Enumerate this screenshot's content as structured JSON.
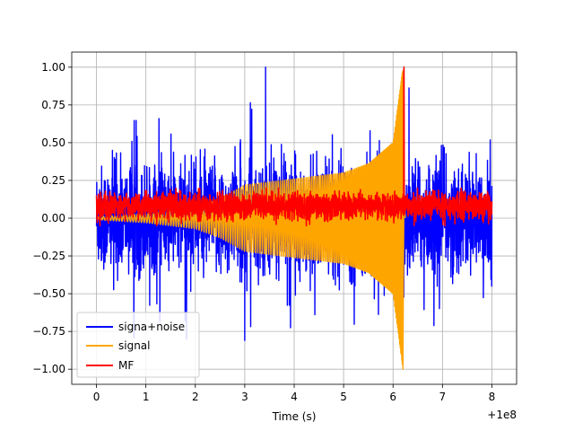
{
  "chart_data": {
    "type": "line",
    "title": "",
    "xlabel": "Time (s)",
    "ylabel": "",
    "x_offset_label": "+1e8",
    "xlim": [
      -0.5,
      8.5
    ],
    "ylim": [
      -1.1,
      1.1
    ],
    "xticks": [
      0,
      1,
      2,
      3,
      4,
      5,
      6,
      7,
      8
    ],
    "xtick_labels": [
      "0",
      "1",
      "2",
      "3",
      "4",
      "5",
      "6",
      "7",
      "8"
    ],
    "yticks": [
      -1.0,
      -0.75,
      -0.5,
      -0.25,
      0.0,
      0.25,
      0.5,
      0.75,
      1.0
    ],
    "ytick_labels": [
      "−1.00",
      "−0.75",
      "−0.50",
      "−0.25",
      "0.00",
      "0.25",
      "0.50",
      "0.75",
      "1.00"
    ],
    "grid": true,
    "legend_position": "lower-left",
    "series": [
      {
        "name": "signa+noise",
        "color": "#0000ff",
        "x_range": [
          0,
          8
        ],
        "baseline_amplitude": 0.4,
        "max_value": 1.0,
        "min_value": -0.82,
        "peak_time": 3.42
      },
      {
        "name": "signal",
        "color": "#ffa500",
        "x_range": [
          0,
          6.25
        ],
        "amplitude_points": [
          [
            0,
            0.01
          ],
          [
            1,
            0.03
          ],
          [
            2,
            0.07
          ],
          [
            2.5,
            0.13
          ],
          [
            3,
            0.22
          ],
          [
            4,
            0.26
          ],
          [
            5,
            0.3
          ],
          [
            5.5,
            0.36
          ],
          [
            6.0,
            0.5
          ],
          [
            6.2,
            1.0
          ]
        ],
        "chirp_end_time": 6.2,
        "max_value": 1.0,
        "min_value": -1.0
      },
      {
        "name": "MF",
        "color": "#ff0000",
        "x_range": [
          0,
          8
        ],
        "baseline_amplitude": 0.13,
        "peak_time": 6.22,
        "max_value": 1.0,
        "min_value": -0.05
      }
    ]
  }
}
